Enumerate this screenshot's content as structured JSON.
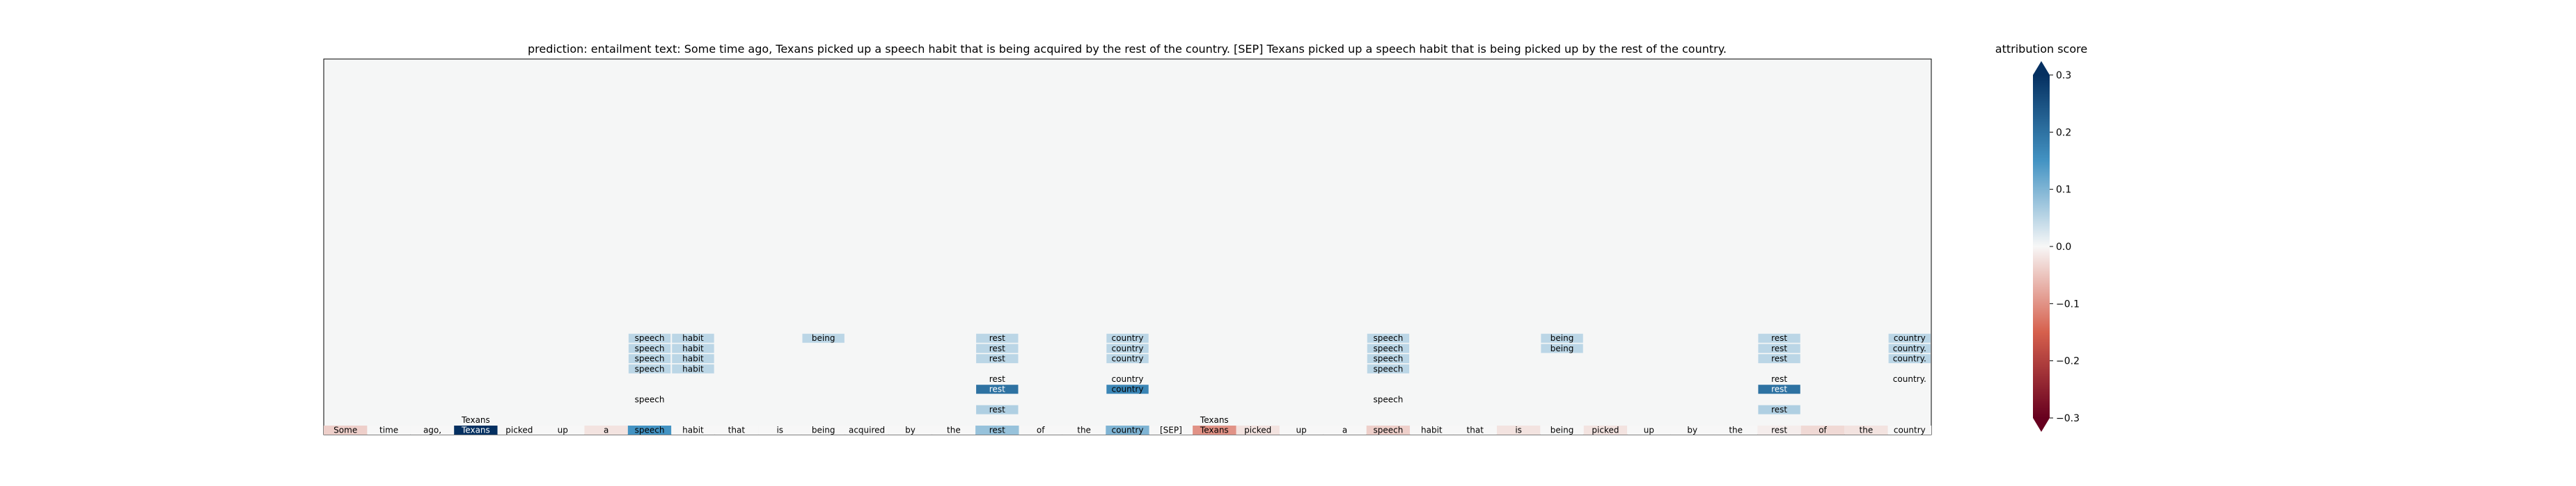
{
  "chart_data": {
    "type": "heatmap",
    "title": "prediction:  entailment     text:  Some time ago, Texans picked up a speech habit that is being acquired by the rest of the country. [SEP] Texans picked up a speech habit that is being picked up by the rest of the country.",
    "tokens": [
      "Some",
      "time",
      "ago,",
      "Texans",
      "picked",
      "up",
      "a",
      "speech",
      "habit",
      "that",
      "is",
      "being",
      "acquired",
      "by",
      "the",
      "rest",
      "of",
      "the",
      "country",
      "[SEP]",
      "Texans",
      "picked",
      "up",
      "a",
      "speech",
      "habit",
      "that",
      "is",
      "being",
      "picked",
      "up",
      "by",
      "the",
      "rest",
      "of",
      "the",
      "country"
    ],
    "token_scores": [
      -0.04,
      0.0,
      0.0,
      0.3,
      0.0,
      0.0,
      -0.02,
      0.15,
      0.0,
      0.0,
      0.0,
      0.0,
      0.0,
      0.0,
      0.0,
      0.08,
      0.0,
      0.0,
      0.1,
      0.0,
      -0.1,
      -0.02,
      0.0,
      0.0,
      -0.04,
      0.0,
      0.0,
      -0.02,
      0.0,
      -0.02,
      0.0,
      0.0,
      0.0,
      -0.01,
      -0.03,
      -0.02,
      0.0
    ],
    "annotations": [
      {
        "token_index": 7,
        "rows": [
          {
            "level": 9,
            "label": "speech",
            "score": 0.05
          },
          {
            "level": 8,
            "label": "speech",
            "score": 0.05
          },
          {
            "level": 7,
            "label": "speech",
            "score": 0.05
          },
          {
            "level": 6,
            "label": "speech",
            "score": 0.05
          },
          {
            "level": 3,
            "label": "speech",
            "score": 0.0
          }
        ]
      },
      {
        "token_index": 8,
        "rows": [
          {
            "level": 9,
            "label": "habit",
            "score": 0.05
          },
          {
            "level": 8,
            "label": "habit",
            "score": 0.05
          },
          {
            "level": 7,
            "label": "habit",
            "score": 0.05
          },
          {
            "level": 6,
            "label": "habit",
            "score": 0.05
          }
        ]
      },
      {
        "token_index": 11,
        "rows": [
          {
            "level": 9,
            "label": "being",
            "score": 0.05
          }
        ]
      },
      {
        "token_index": 15,
        "rows": [
          {
            "level": 9,
            "label": "rest",
            "score": 0.05
          },
          {
            "level": 8,
            "label": "rest",
            "score": 0.05
          },
          {
            "level": 7,
            "label": "rest",
            "score": 0.05
          },
          {
            "level": 5,
            "label": "rest",
            "score": 0.0
          },
          {
            "level": 4,
            "label": "rest",
            "score": 0.2
          },
          {
            "level": 2,
            "label": "rest",
            "score": 0.06
          }
        ]
      },
      {
        "token_index": 18,
        "rows": [
          {
            "level": 9,
            "label": "country",
            "score": 0.05
          },
          {
            "level": 8,
            "label": "country",
            "score": 0.05
          },
          {
            "level": 7,
            "label": "country",
            "score": 0.05
          },
          {
            "level": 5,
            "label": "country",
            "score": 0.0
          },
          {
            "level": 4,
            "label": "country",
            "score": 0.17
          }
        ]
      },
      {
        "token_index": 20,
        "rows": [
          {
            "level": 1,
            "label": "Texans",
            "score": 0.0
          }
        ]
      },
      {
        "token_index": 3,
        "rows": [
          {
            "level": 1,
            "label": "Texans",
            "score": 0.0
          }
        ]
      },
      {
        "token_index": 24,
        "rows": [
          {
            "level": 9,
            "label": "speech",
            "score": 0.05
          },
          {
            "level": 8,
            "label": "speech",
            "score": 0.05
          },
          {
            "level": 7,
            "label": "speech",
            "score": 0.05
          },
          {
            "level": 6,
            "label": "speech",
            "score": 0.05
          },
          {
            "level": 3,
            "label": "speech",
            "score": 0.0
          }
        ]
      },
      {
        "token_index": 28,
        "rows": [
          {
            "level": 9,
            "label": "being",
            "score": 0.05
          },
          {
            "level": 8,
            "label": "being",
            "score": 0.05
          }
        ]
      },
      {
        "token_index": 33,
        "rows": [
          {
            "level": 9,
            "label": "rest",
            "score": 0.05
          },
          {
            "level": 8,
            "label": "rest",
            "score": 0.05
          },
          {
            "level": 7,
            "label": "rest",
            "score": 0.05
          },
          {
            "level": 5,
            "label": "rest",
            "score": 0.0
          },
          {
            "level": 4,
            "label": "rest",
            "score": 0.2
          },
          {
            "level": 2,
            "label": "rest",
            "score": 0.06
          }
        ]
      },
      {
        "token_index": 36,
        "rows": [
          {
            "level": 9,
            "label": "country",
            "score": 0.05
          },
          {
            "level": 8,
            "label": "country.",
            "score": 0.05
          },
          {
            "level": 7,
            "label": "country.",
            "score": 0.05
          },
          {
            "level": 5,
            "label": "country.",
            "score": 0.0
          }
        ]
      }
    ],
    "colorbar": {
      "label": "attribution score",
      "range": [
        -0.3,
        0.3
      ],
      "ticks": [
        0.3,
        0.2,
        0.1,
        0.0,
        -0.1,
        -0.2,
        -0.3
      ],
      "tick_labels": [
        "0.3",
        "0.2",
        "0.1",
        "0.0",
        "−0.1",
        "−0.2",
        "−0.3"
      ],
      "colormap": "RdBu",
      "extend": "both"
    },
    "colors": {
      "positive_dark": "#053061",
      "positive_mid": "#4393c3",
      "neutral": "#f7f7f7",
      "negative_mid": "#d6604d",
      "negative_dark": "#67001f",
      "plot_background": "#f5f6f6"
    }
  }
}
